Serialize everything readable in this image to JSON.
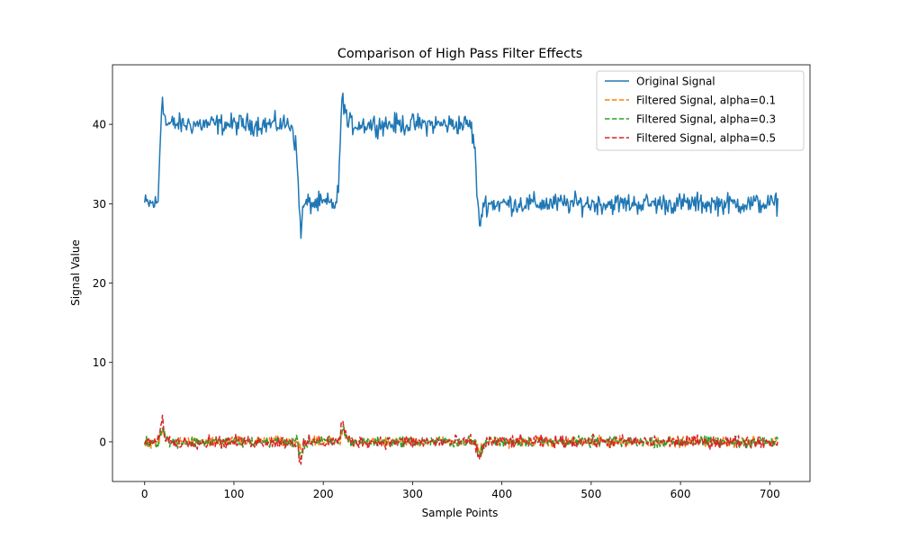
{
  "chart_data": {
    "type": "line",
    "title": "Comparison of High Pass Filter Effects",
    "xlabel": "Sample Points",
    "ylabel": "Signal Value",
    "xlim": [
      -36,
      745
    ],
    "ylim": [
      -5,
      47.5
    ],
    "xticks": [
      0,
      100,
      200,
      300,
      400,
      500,
      600,
      700
    ],
    "yticks": [
      0,
      10,
      20,
      30,
      40
    ],
    "grid": false,
    "legend_position": "top-right",
    "x_range": [
      0,
      709
    ],
    "segments": [
      {
        "x": [
          0,
          15
        ],
        "level": 30
      },
      {
        "x": [
          25,
          165
        ],
        "level": 40
      },
      {
        "x": [
          180,
          215
        ],
        "level": 30
      },
      {
        "x": [
          225,
          365
        ],
        "level": 40
      },
      {
        "x": [
          380,
          709
        ],
        "level": 30
      }
    ],
    "features": [
      {
        "x": 20,
        "y": 45
      },
      {
        "x": 175,
        "y": 26
      },
      {
        "x": 222,
        "y": 44.7
      },
      {
        "x": 375,
        "y": 25.8
      }
    ],
    "series": [
      {
        "name": "Original Signal",
        "color": "#1f77b4",
        "style": "solid",
        "noise_amplitude": 1.0
      },
      {
        "name": "Filtered Signal, alpha=0.1",
        "color": "#ff7f0e",
        "style": "dashed",
        "noise_amplitude": 0.5
      },
      {
        "name": "Filtered Signal, alpha=0.3",
        "color": "#2ca02c",
        "style": "dashed",
        "noise_amplitude": 0.5
      },
      {
        "name": "Filtered Signal, alpha=0.5",
        "color": "#d62728",
        "style": "dashed",
        "noise_amplitude": 0.6
      }
    ]
  }
}
